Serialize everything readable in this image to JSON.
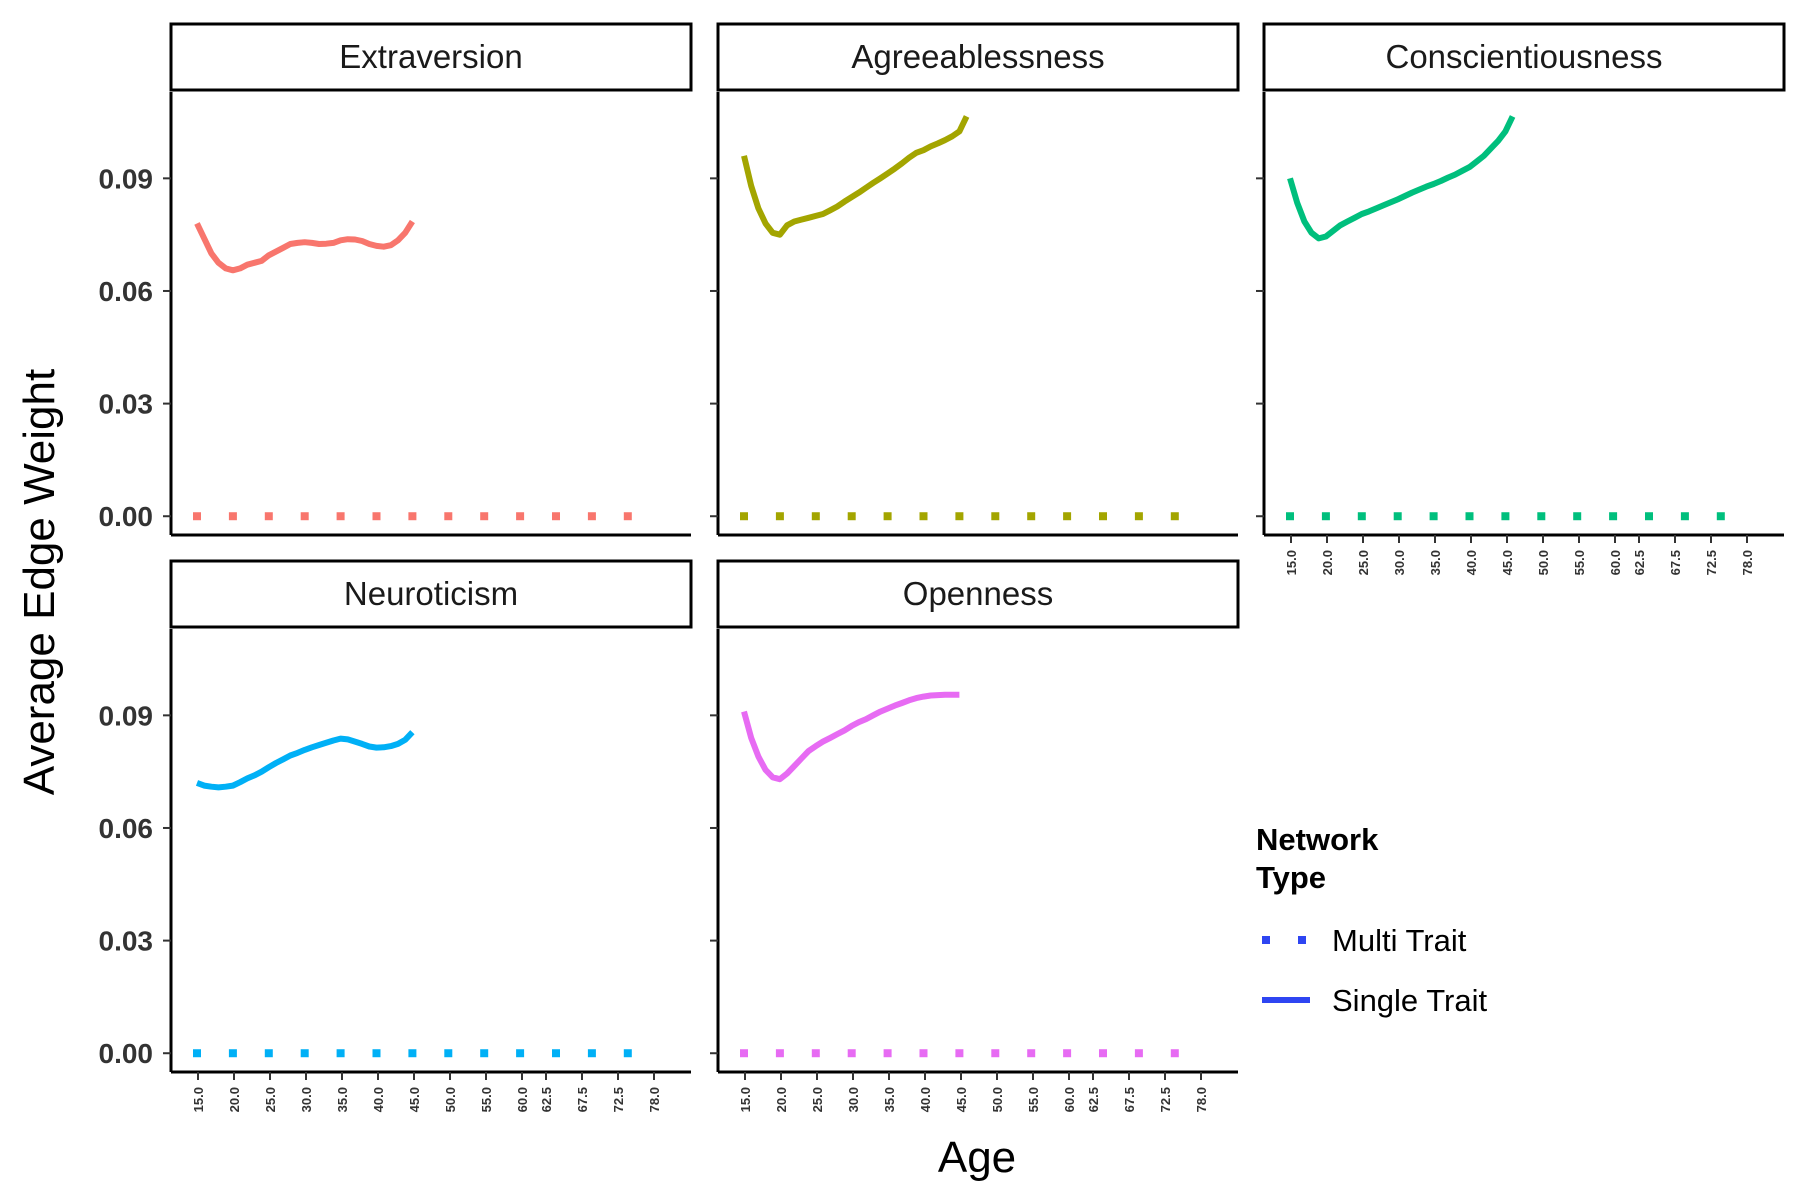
{
  "chart_data": {
    "type": "line",
    "xlabel": "Age",
    "ylabel": "Average Edge Weight",
    "ylim": [
      -0.005,
      0.113
    ],
    "yticks": [
      0.0,
      0.03,
      0.06,
      0.09
    ],
    "ytick_labels": [
      "0.00",
      "0.03",
      "0.06",
      "0.09"
    ],
    "xticks": [
      15.0,
      20.0,
      25.0,
      30.0,
      35.0,
      40.0,
      45.0,
      50.0,
      55.0,
      60.0,
      62.5,
      67.5,
      72.5,
      78.0
    ],
    "xtick_labels": [
      "15.0",
      "20.0",
      "25.0",
      "30.0",
      "35.0",
      "40.0",
      "45.0",
      "50.0",
      "55.0",
      "60.0",
      "62.5",
      "67.5",
      "72.5",
      "78.0"
    ],
    "grid": false,
    "legend": {
      "title": "Network\nType",
      "position": "right",
      "entries": [
        {
          "label": "Multi Trait",
          "linetype": "dotted",
          "color": "#2E45F2"
        },
        {
          "label": "Single Trait",
          "linetype": "solid",
          "color": "#2E45F2"
        }
      ]
    },
    "panels": [
      {
        "name": "Extraversion",
        "color": "#F8766D",
        "single_trait": {
          "x": [
            15,
            16,
            17,
            18,
            19,
            20,
            21,
            22,
            23,
            24,
            25,
            26,
            27,
            28,
            29,
            30,
            31,
            32,
            33,
            34,
            35,
            36,
            37,
            38,
            39,
            40,
            41,
            42,
            43,
            44,
            45
          ],
          "y": [
            0.078,
            0.074,
            0.07,
            0.0675,
            0.066,
            0.0655,
            0.066,
            0.067,
            0.0675,
            0.068,
            0.0695,
            0.0705,
            0.0715,
            0.0725,
            0.0728,
            0.073,
            0.0728,
            0.0725,
            0.0726,
            0.0728,
            0.0735,
            0.0738,
            0.0737,
            0.0733,
            0.0725,
            0.072,
            0.0718,
            0.0722,
            0.0735,
            0.0755,
            0.0785
          ]
        },
        "multi_trait": {
          "x": [
            15,
            20,
            25,
            30,
            35,
            40,
            45,
            50,
            55,
            60,
            65,
            70,
            75
          ],
          "y": [
            0,
            0,
            0,
            0,
            0,
            0,
            0,
            0,
            0,
            0,
            0,
            0,
            0
          ]
        }
      },
      {
        "name": "Agreeablessness",
        "color": "#A3A500",
        "single_trait": {
          "x": [
            15,
            16,
            17,
            18,
            19,
            20,
            21,
            22,
            23,
            24,
            25,
            26,
            27,
            28,
            29,
            30,
            31,
            32,
            33,
            34,
            35,
            36,
            37,
            38,
            39,
            40,
            41,
            42,
            43,
            44,
            45,
            46
          ],
          "y": [
            0.096,
            0.088,
            0.082,
            0.078,
            0.0755,
            0.075,
            0.0775,
            0.0785,
            0.079,
            0.0795,
            0.08,
            0.0805,
            0.0815,
            0.0825,
            0.0838,
            0.085,
            0.0862,
            0.0875,
            0.0888,
            0.09,
            0.0913,
            0.0926,
            0.094,
            0.0955,
            0.0968,
            0.0975,
            0.0985,
            0.0993,
            0.1002,
            0.1012,
            0.1025,
            0.1065
          ]
        },
        "multi_trait": {
          "x": [
            15,
            20,
            25,
            30,
            35,
            40,
            45,
            50,
            55,
            60,
            65,
            70,
            75
          ],
          "y": [
            0,
            0,
            0,
            0,
            0,
            0,
            0,
            0,
            0,
            0,
            0,
            0,
            0
          ]
        }
      },
      {
        "name": "Conscientiousness",
        "color": "#00BF7D",
        "single_trait": {
          "x": [
            15,
            16,
            17,
            18,
            19,
            20,
            21,
            22,
            23,
            24,
            25,
            26,
            27,
            28,
            29,
            30,
            31,
            32,
            33,
            34,
            35,
            36,
            37,
            38,
            39,
            40,
            41,
            42,
            43,
            44,
            45,
            46
          ],
          "y": [
            0.09,
            0.0835,
            0.0785,
            0.0755,
            0.074,
            0.0745,
            0.076,
            0.0775,
            0.0785,
            0.0795,
            0.0805,
            0.0812,
            0.082,
            0.0828,
            0.0836,
            0.0844,
            0.0853,
            0.0862,
            0.087,
            0.0878,
            0.0885,
            0.0893,
            0.0902,
            0.091,
            0.092,
            0.093,
            0.0945,
            0.096,
            0.098,
            0.1,
            0.1025,
            0.1065
          ]
        },
        "multi_trait": {
          "x": [
            15,
            20,
            25,
            30,
            35,
            40,
            45,
            50,
            55,
            60,
            65,
            70,
            75
          ],
          "y": [
            0,
            0,
            0,
            0,
            0,
            0,
            0,
            0,
            0,
            0,
            0,
            0,
            0
          ]
        }
      },
      {
        "name": "Neuroticism",
        "color": "#00B0F6",
        "single_trait": {
          "x": [
            15,
            16,
            17,
            18,
            19,
            20,
            21,
            22,
            23,
            24,
            25,
            26,
            27,
            28,
            29,
            30,
            31,
            32,
            33,
            34,
            35,
            36,
            37,
            38,
            39,
            40,
            41,
            42,
            43,
            44,
            45
          ],
          "y": [
            0.072,
            0.0713,
            0.071,
            0.0708,
            0.071,
            0.0713,
            0.0722,
            0.0732,
            0.074,
            0.075,
            0.0762,
            0.0773,
            0.0783,
            0.0793,
            0.08,
            0.0808,
            0.0815,
            0.0821,
            0.0827,
            0.0833,
            0.0838,
            0.0836,
            0.083,
            0.0824,
            0.0817,
            0.0814,
            0.0815,
            0.0818,
            0.0824,
            0.0835,
            0.0855
          ]
        },
        "multi_trait": {
          "x": [
            15,
            20,
            25,
            30,
            35,
            40,
            45,
            50,
            55,
            60,
            65,
            70,
            75
          ],
          "y": [
            0,
            0,
            0,
            0,
            0,
            0,
            0,
            0,
            0,
            0,
            0,
            0,
            0
          ]
        }
      },
      {
        "name": "Openness",
        "color": "#E76BF3",
        "single_trait": {
          "x": [
            15,
            16,
            17,
            18,
            19,
            20,
            21,
            22,
            23,
            24,
            25,
            26,
            27,
            28,
            29,
            30,
            31,
            32,
            33,
            34,
            35,
            36,
            37,
            38,
            39,
            40,
            41,
            42,
            43,
            44,
            45
          ],
          "y": [
            0.091,
            0.084,
            0.079,
            0.0755,
            0.0735,
            0.073,
            0.0745,
            0.0765,
            0.0785,
            0.0805,
            0.0818,
            0.083,
            0.084,
            0.085,
            0.086,
            0.0872,
            0.0882,
            0.089,
            0.09,
            0.091,
            0.0918,
            0.0926,
            0.0933,
            0.094,
            0.0946,
            0.095,
            0.0953,
            0.0954,
            0.0955,
            0.0955,
            0.0955
          ]
        },
        "multi_trait": {
          "x": [
            15,
            20,
            25,
            30,
            35,
            40,
            45,
            50,
            55,
            60,
            65,
            70,
            75
          ],
          "y": [
            0,
            0,
            0,
            0,
            0,
            0,
            0,
            0,
            0,
            0,
            0,
            0,
            0
          ]
        }
      }
    ]
  }
}
